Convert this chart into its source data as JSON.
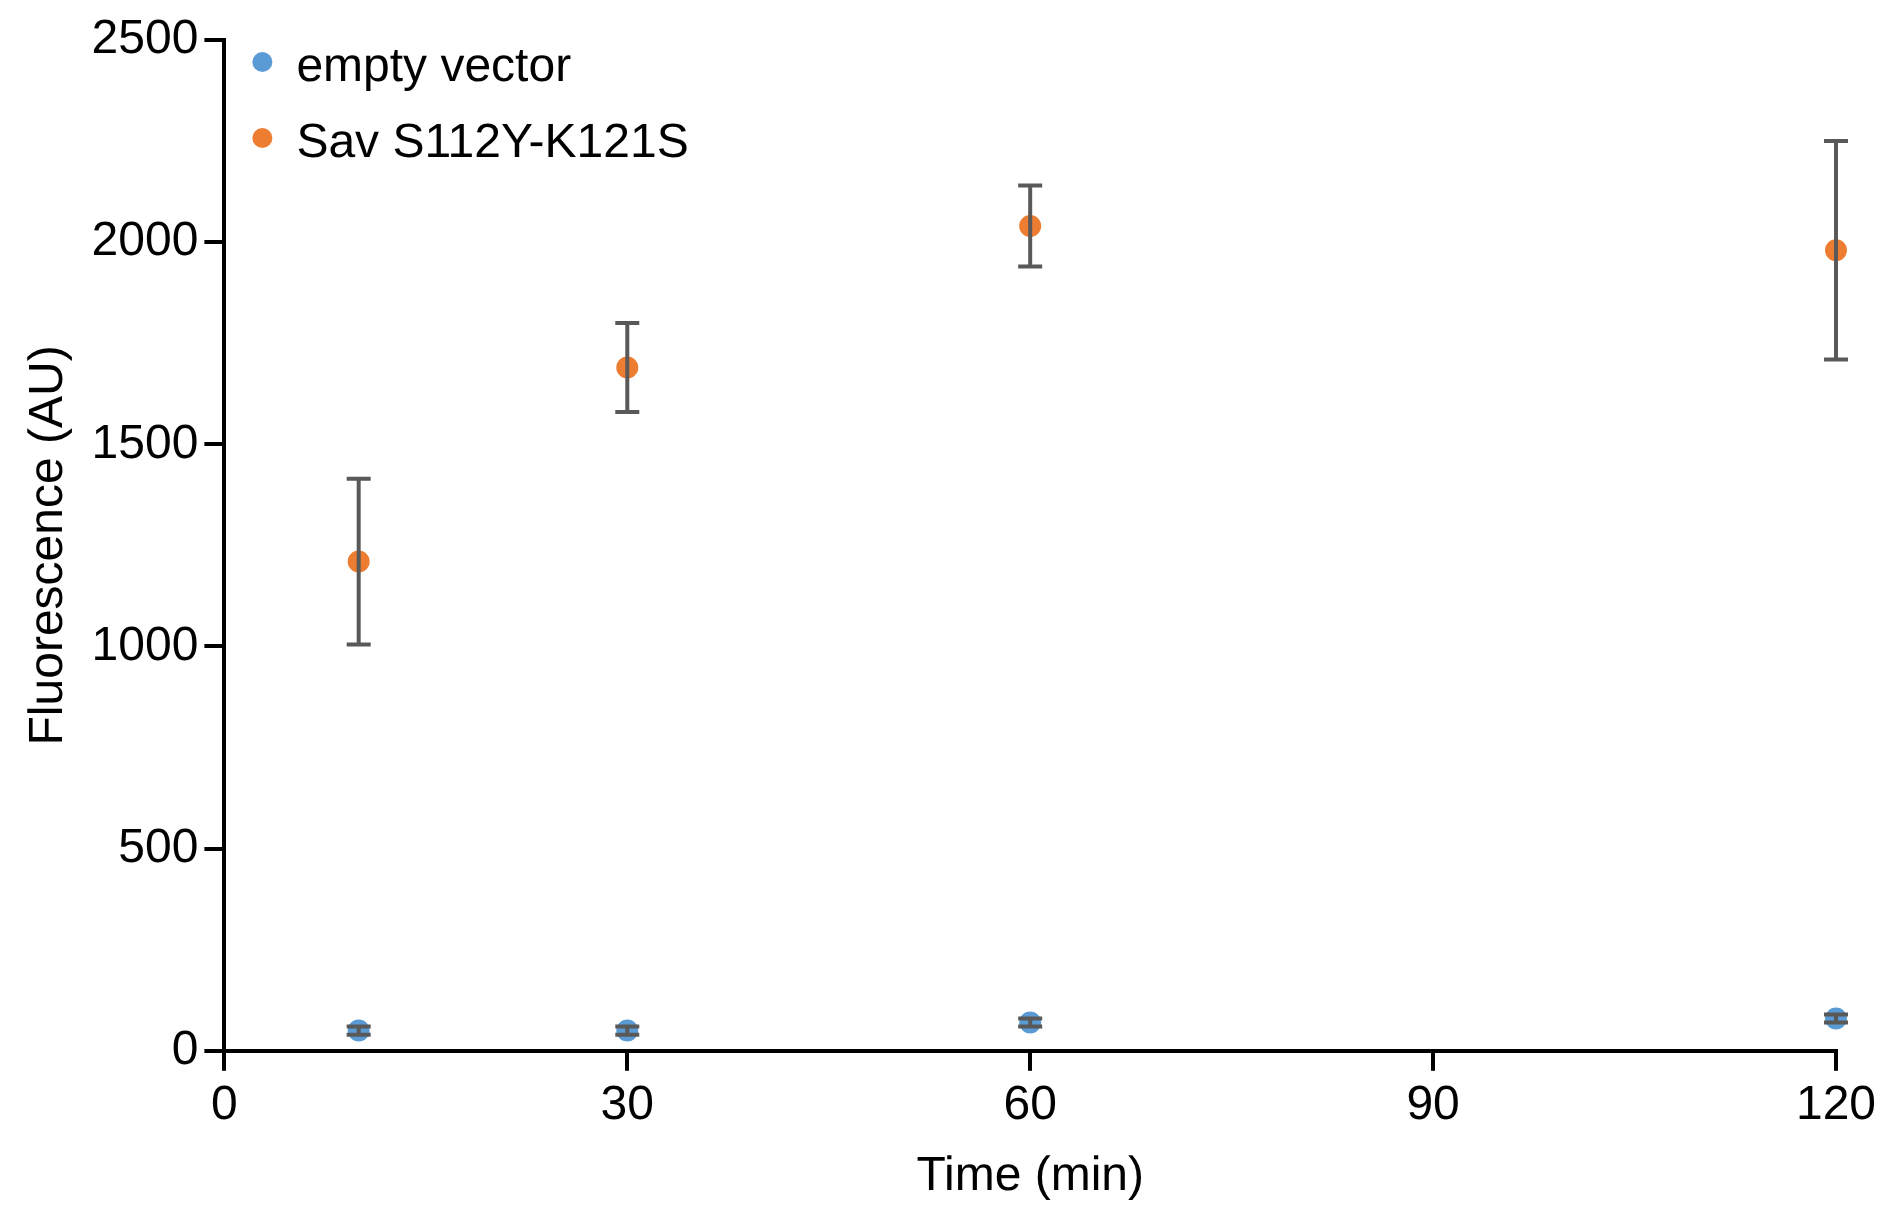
{
  "chart_data": {
    "type": "scatter",
    "xlabel": "Time (min)",
    "ylabel": "Fluorescence (AU)",
    "x": [
      10,
      30,
      60,
      120
    ],
    "series": [
      {
        "name": "empty vector",
        "color": "#5b9bd5",
        "values": [
          50,
          50,
          70,
          80
        ],
        "errors": [
          10,
          10,
          10,
          10
        ]
      },
      {
        "name": "Sav S112Y-K121S",
        "color": "#ed7d31",
        "values": [
          1210,
          1690,
          2040,
          1980
        ],
        "errors": [
          205,
          110,
          100,
          270
        ]
      }
    ],
    "xlim": [
      0,
      120
    ],
    "xticks": [
      0,
      30,
      60,
      90,
      120
    ],
    "ylim": [
      0,
      2500
    ],
    "yticks": [
      0,
      500,
      1000,
      1500,
      2000,
      2500
    ],
    "grid": false,
    "legend": "top left",
    "marker": "circle"
  }
}
